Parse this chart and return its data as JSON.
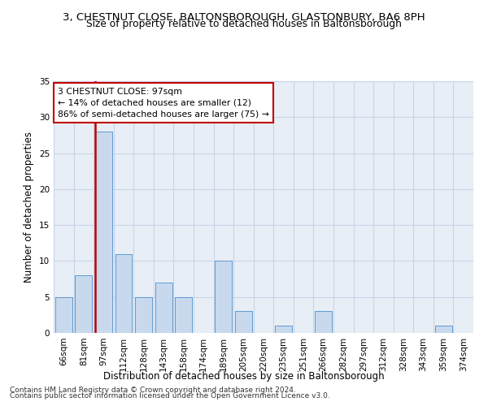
{
  "title": "3, CHESTNUT CLOSE, BALTONSBOROUGH, GLASTONBURY, BA6 8PH",
  "subtitle": "Size of property relative to detached houses in Baltonsborough",
  "xlabel": "Distribution of detached houses by size in Baltonsborough",
  "ylabel": "Number of detached properties",
  "categories": [
    "66sqm",
    "81sqm",
    "97sqm",
    "112sqm",
    "128sqm",
    "143sqm",
    "158sqm",
    "174sqm",
    "189sqm",
    "205sqm",
    "220sqm",
    "235sqm",
    "251sqm",
    "266sqm",
    "282sqm",
    "297sqm",
    "312sqm",
    "328sqm",
    "343sqm",
    "359sqm",
    "374sqm"
  ],
  "values": [
    5,
    8,
    28,
    11,
    5,
    7,
    5,
    0,
    10,
    3,
    0,
    1,
    0,
    3,
    0,
    0,
    0,
    0,
    0,
    1,
    0
  ],
  "bar_color": "#c8d9ed",
  "bar_edge_color": "#5b9bd5",
  "highlight_index": 2,
  "highlight_line_color": "#c00000",
  "ylim": [
    0,
    35
  ],
  "yticks": [
    0,
    5,
    10,
    15,
    20,
    25,
    30,
    35
  ],
  "annotation_text": "3 CHESTNUT CLOSE: 97sqm\n← 14% of detached houses are smaller (12)\n86% of semi-detached houses are larger (75) →",
  "annotation_box_color": "#ffffff",
  "annotation_box_edge_color": "#c00000",
  "footer_line1": "Contains HM Land Registry data © Crown copyright and database right 2024.",
  "footer_line2": "Contains public sector information licensed under the Open Government Licence v3.0.",
  "bg_color": "#ffffff",
  "plot_bg_color": "#e8eef5",
  "grid_color": "#c8d4e8",
  "title_fontsize": 9.5,
  "subtitle_fontsize": 8.8,
  "axis_label_fontsize": 8.5,
  "tick_fontsize": 7.5
}
